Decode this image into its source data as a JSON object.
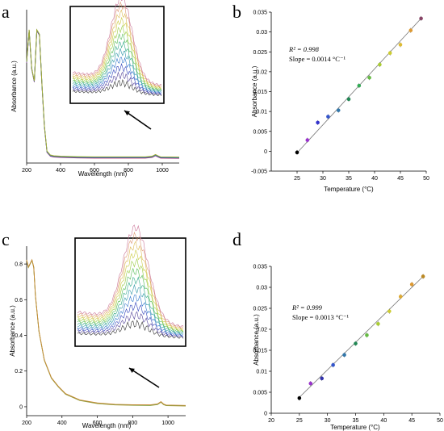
{
  "chart_data": [
    {
      "panel": "a",
      "type": "line",
      "xlabel": "Wavelength (nm)",
      "ylabel": "Absorbance (a.u.)",
      "xlim": [
        200,
        1100
      ],
      "ylim": [
        -0.02,
        0.7
      ],
      "x_ticks": [
        200,
        400,
        600,
        800,
        1000
      ],
      "y_ticks": [],
      "series": [
        {
          "values_x": [
            200,
            215,
            230,
            245,
            260,
            275,
            290,
            305,
            320,
            340,
            360,
            400,
            500,
            600,
            700,
            800,
            900,
            940,
            960,
            975,
            990,
            1100
          ],
          "values_y": [
            0.45,
            0.6,
            0.42,
            0.36,
            0.6,
            0.58,
            0.35,
            0.15,
            0.03,
            0.012,
            0.008,
            0.006,
            0.004,
            0.003,
            0.003,
            0.003,
            0.003,
            0.006,
            0.014,
            0.008,
            0.003,
            0.002
          ]
        }
      ],
      "inset": {
        "type": "line",
        "n_curves": 12
      },
      "arrow": true
    },
    {
      "panel": "b",
      "type": "scatter",
      "xlabel": "Temperature (°C)",
      "ylabel": "Absorbance (a.u.)",
      "xlim": [
        20,
        50
      ],
      "ylim": [
        -0.005,
        0.035
      ],
      "x_ticks": [
        25,
        30,
        35,
        40,
        45,
        50
      ],
      "y_ticks": [
        -0.005,
        0,
        0.005,
        0.01,
        0.015,
        0.02,
        0.025,
        0.03,
        0.035
      ],
      "y_tick_labels": [
        "-0.005",
        "0",
        "0.005",
        "0.01",
        "0.015",
        "0.02",
        "0.025",
        "0.03",
        "0.035"
      ],
      "annotation": {
        "r2": "R² = 0.998",
        "slope": "Slope = 0.0014 °C⁻¹"
      },
      "points": [
        {
          "x": 25,
          "y": -0.0003,
          "color": "#000000"
        },
        {
          "x": 27,
          "y": 0.0028,
          "color": "#9933cc"
        },
        {
          "x": 29,
          "y": 0.0072,
          "color": "#3333cc"
        },
        {
          "x": 31,
          "y": 0.0087,
          "color": "#3355cc"
        },
        {
          "x": 33,
          "y": 0.0103,
          "color": "#3377aa"
        },
        {
          "x": 35,
          "y": 0.0131,
          "color": "#228855"
        },
        {
          "x": 37,
          "y": 0.0165,
          "color": "#33aa55"
        },
        {
          "x": 39,
          "y": 0.0185,
          "color": "#66bb44"
        },
        {
          "x": 41,
          "y": 0.0218,
          "color": "#aacc33"
        },
        {
          "x": 43,
          "y": 0.0247,
          "color": "#cccc33"
        },
        {
          "x": 45,
          "y": 0.0268,
          "color": "#ddbb33"
        },
        {
          "x": 47,
          "y": 0.0304,
          "color": "#dd9933"
        },
        {
          "x": 49,
          "y": 0.0334,
          "color": "#884466"
        }
      ],
      "fit": {
        "x": [
          25,
          49
        ],
        "y": [
          -0.0004,
          0.0334
        ]
      }
    },
    {
      "panel": "c",
      "type": "line",
      "xlabel": "Wavelength (nm)",
      "ylabel": "Absorbance (a.u.)",
      "xlim": [
        200,
        1100
      ],
      "ylim": [
        -0.05,
        0.9
      ],
      "x_ticks": [
        200,
        400,
        600,
        800,
        1000
      ],
      "y_ticks": [
        0,
        0.2,
        0.4,
        0.6,
        0.8
      ],
      "y_tick_labels": [
        "0",
        "0.2",
        "0.4",
        "0.6",
        "0.8"
      ],
      "series": [
        {
          "values_x": [
            200,
            210,
            220,
            230,
            240,
            250,
            270,
            300,
            340,
            380,
            420,
            500,
            600,
            700,
            800,
            900,
            940,
            960,
            975,
            990,
            1100
          ],
          "values_y": [
            0.82,
            0.78,
            0.8,
            0.82,
            0.78,
            0.62,
            0.42,
            0.26,
            0.16,
            0.11,
            0.07,
            0.035,
            0.018,
            0.01,
            0.008,
            0.007,
            0.012,
            0.025,
            0.012,
            0.006,
            0.004
          ]
        }
      ],
      "inset": {
        "type": "line",
        "n_curves": 12
      },
      "arrow": true
    },
    {
      "panel": "d",
      "type": "scatter",
      "xlabel": "Temperature (°C)",
      "ylabel": "Absorbance (a.u.)",
      "xlim": [
        20,
        50
      ],
      "ylim": [
        0,
        0.035
      ],
      "x_ticks": [
        20,
        25,
        30,
        35,
        40,
        45,
        50
      ],
      "y_ticks": [
        0,
        0.005,
        0.01,
        0.015,
        0.02,
        0.025,
        0.03,
        0.035
      ],
      "y_tick_labels": [
        "0",
        "0.005",
        "0.01",
        "0.015",
        "0.02",
        "0.025",
        "0.03",
        "0.035"
      ],
      "annotation": {
        "r2": "R² = 0.999",
        "slope": "Slope = 0.0013 °C⁻¹"
      },
      "points": [
        {
          "x": 25,
          "y": 0.0036,
          "color": "#000000"
        },
        {
          "x": 27,
          "y": 0.0071,
          "color": "#9933cc"
        },
        {
          "x": 29,
          "y": 0.0083,
          "color": "#3333aa"
        },
        {
          "x": 31,
          "y": 0.0115,
          "color": "#3355cc"
        },
        {
          "x": 33,
          "y": 0.0139,
          "color": "#3377aa"
        },
        {
          "x": 35,
          "y": 0.0166,
          "color": "#228855"
        },
        {
          "x": 37,
          "y": 0.0186,
          "color": "#66bb44"
        },
        {
          "x": 39,
          "y": 0.0213,
          "color": "#aacc33"
        },
        {
          "x": 41,
          "y": 0.0243,
          "color": "#cccc33"
        },
        {
          "x": 43,
          "y": 0.0278,
          "color": "#ddaa33"
        },
        {
          "x": 45,
          "y": 0.0307,
          "color": "#dd9933"
        },
        {
          "x": 47,
          "y": 0.0326,
          "color": "#bb8822"
        }
      ],
      "fit": {
        "x": [
          25,
          47
        ],
        "y": [
          0.0038,
          0.0326
        ]
      }
    }
  ],
  "inset_colors": [
    "#333333",
    "#554499",
    "#3344bb",
    "#3377cc",
    "#3399aa",
    "#33aa88",
    "#55bb55",
    "#99cc44",
    "#cccc44",
    "#ddbb55",
    "#dd9977",
    "#cc7799",
    "#aa5599"
  ]
}
